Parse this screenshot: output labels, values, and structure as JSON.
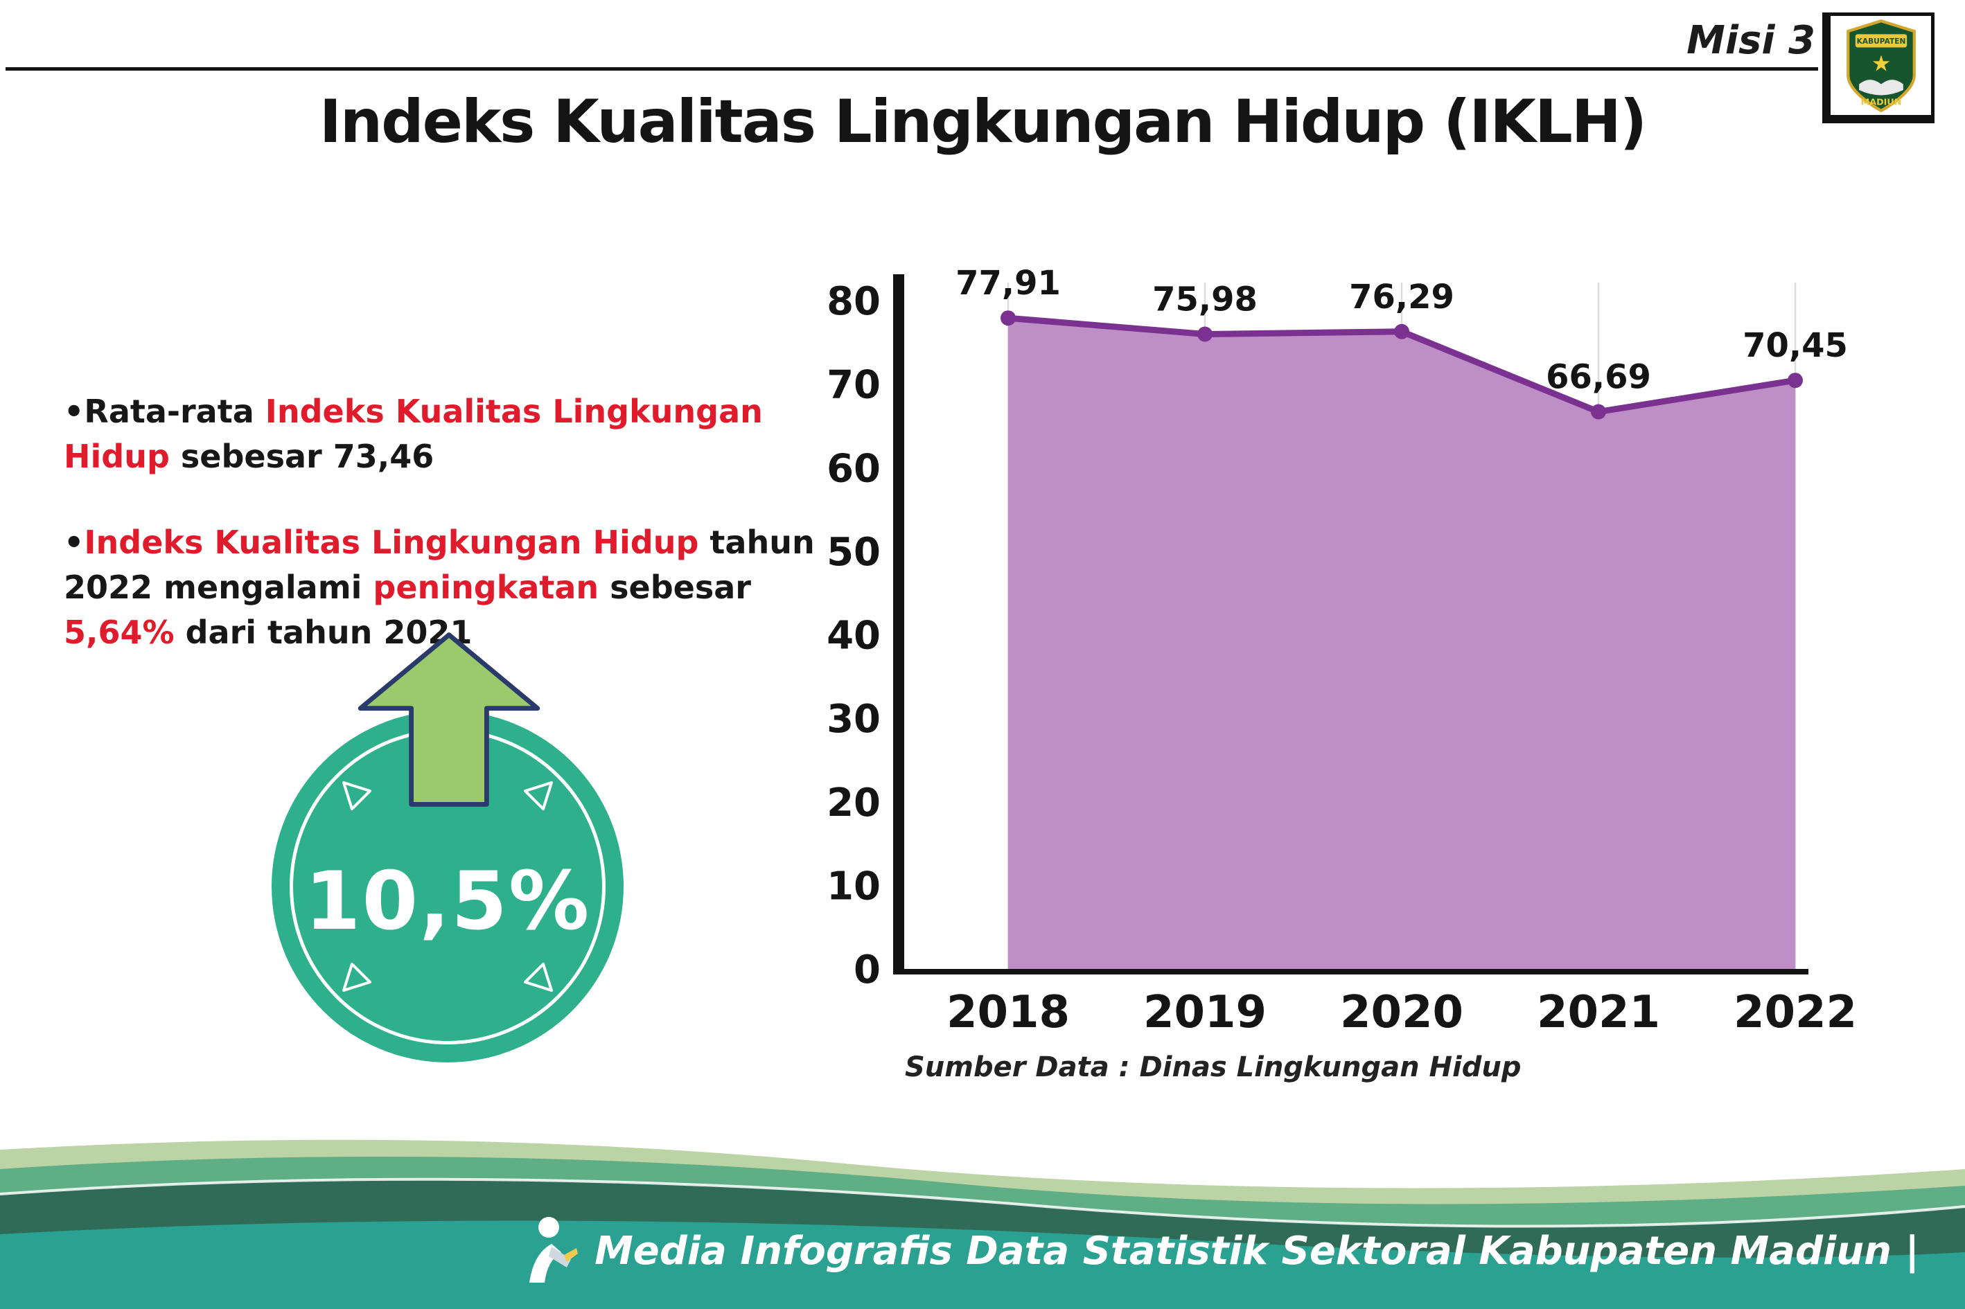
{
  "page": {
    "misi_label": "Misi 3",
    "title": "Indeks Kualitas Lingkungan Hidup (IKLH)"
  },
  "logo": {
    "top_text": "KABUPATEN",
    "bottom_text": "MADIUN"
  },
  "bullets": {
    "bullet_char": "•",
    "b1": {
      "s1": "Rata-rata ",
      "s2": "Indeks Kualitas Lingkungan Hidup",
      "s3": " sebesar 73,46"
    },
    "b2": {
      "s1": "Indeks Kualitas Lingkungan Hidup",
      "s2": " tahun 2022 mengalami ",
      "s3": "peningkatan",
      "s4": " sebesar ",
      "s5": "5,64%",
      "s6": " dari tahun 2021"
    }
  },
  "badge": {
    "value": "10,5%"
  },
  "chart_data": {
    "type": "area",
    "title": "",
    "categories": [
      "2018",
      "2019",
      "2020",
      "2021",
      "2022"
    ],
    "values": [
      77.91,
      75.98,
      76.29,
      66.69,
      70.45
    ],
    "point_labels": [
      "77,91",
      "75,98",
      "76,29",
      "66,69",
      "70,45"
    ],
    "xlabel": "",
    "ylabel": "",
    "ylim": [
      0,
      80
    ],
    "ytick_step": 10,
    "grid": "vertical",
    "legend": "none",
    "source_note": "Sumber Data : Dinas Lingkungan Hidup"
  },
  "footer": {
    "credit": "Media Infografis Data Statistik Sektoral Kabupaten Madiun |"
  },
  "colors": {
    "accent-red": "#e01b2b",
    "area-fill": "#bd8fc6",
    "line-purple": "#7a3190",
    "badge-teal": "#2fb08c",
    "arrow-green": "#9dc96d",
    "footer-sage": "#bcd3a5",
    "footer-mid": "#5fae85",
    "footer-dark": "#2f6b57",
    "footer-teal": "#2aa191"
  }
}
